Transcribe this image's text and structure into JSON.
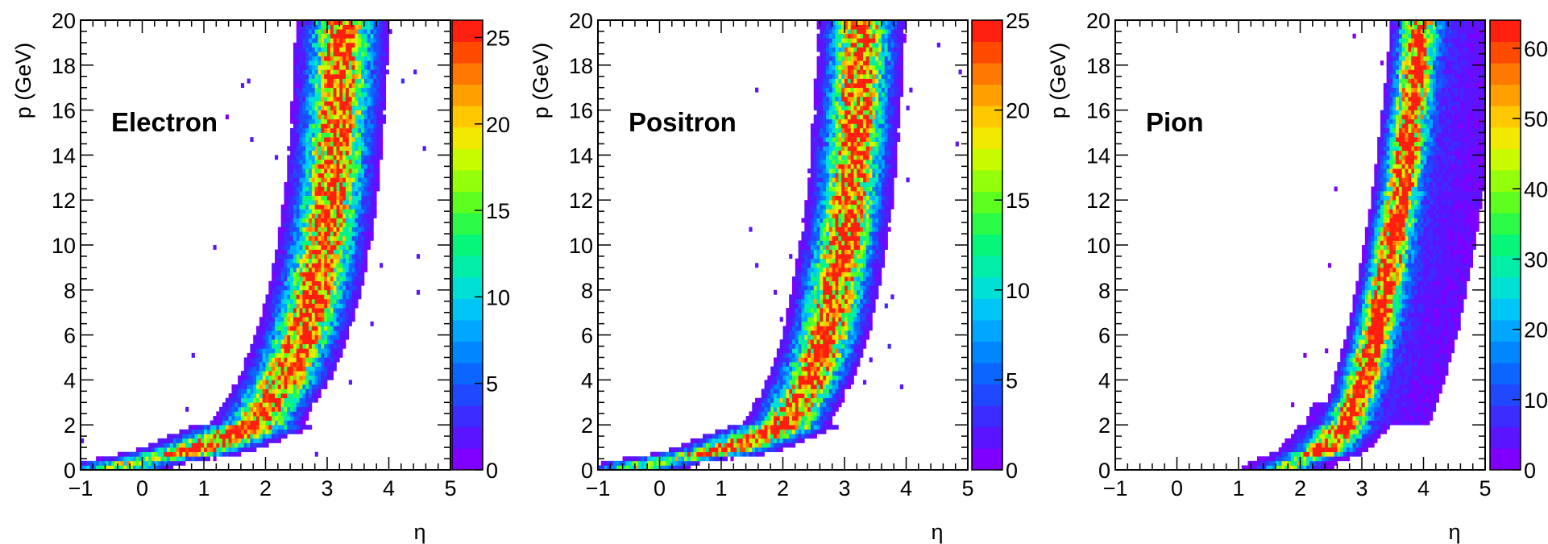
{
  "colors": {
    "background": "#ffffff",
    "frame": "#000000",
    "palette": [
      "#7f00ff",
      "#5a14ff",
      "#3c2cff",
      "#2048ff",
      "#0b66ff",
      "#0086ff",
      "#00a6ff",
      "#00c6f5",
      "#00e0d4",
      "#00eea8",
      "#06f67a",
      "#2bfb46",
      "#5cff1d",
      "#93ff0a",
      "#c8fb00",
      "#f2e900",
      "#ffc800",
      "#ffa000",
      "#ff7800",
      "#ff4a00",
      "#ff1f10"
    ]
  },
  "chart_data": [
    {
      "type": "heatmap",
      "label": "Electron",
      "xlabel": "η",
      "ylabel": "p (GeV)",
      "xlim": [
        -1,
        5
      ],
      "ylim": [
        0,
        20
      ],
      "x_ticks": [
        "−1",
        "0",
        "1",
        "2",
        "3",
        "4",
        "5"
      ],
      "y_ticks": [
        "0",
        "2",
        "4",
        "6",
        "8",
        "10",
        "12",
        "14",
        "16",
        "18",
        "20"
      ],
      "colorbar": {
        "range": [
          0,
          26
        ],
        "tick_labels": [
          "0",
          "5",
          "10",
          "15",
          "20",
          "25"
        ]
      },
      "band": {
        "center_eta_at_p": [
          [
            0.2,
            -0.4
          ],
          [
            0.8,
            0.8
          ],
          [
            2,
            1.85
          ],
          [
            4,
            2.3
          ],
          [
            6,
            2.6
          ],
          [
            8,
            2.8
          ],
          [
            10,
            2.95
          ],
          [
            12,
            3.05
          ],
          [
            14,
            3.12
          ],
          [
            16,
            3.18
          ],
          [
            18,
            3.22
          ],
          [
            20,
            3.25
          ]
        ],
        "eta_width": 0.3,
        "peak_counts": 26
      }
    },
    {
      "type": "heatmap",
      "label": "Positron",
      "xlabel": "η",
      "ylabel": "p (GeV)",
      "xlim": [
        -1,
        5
      ],
      "ylim": [
        0,
        20
      ],
      "x_ticks": [
        "−1",
        "0",
        "1",
        "2",
        "3",
        "4",
        "5"
      ],
      "y_ticks": [
        "0",
        "2",
        "4",
        "6",
        "8",
        "10",
        "12",
        "14",
        "16",
        "18",
        "20"
      ],
      "colorbar": {
        "range": [
          0,
          25
        ],
        "tick_labels": [
          "0",
          "5",
          "10",
          "15",
          "20",
          "25"
        ]
      },
      "band": {
        "center_eta_at_p": [
          [
            0.2,
            -0.4
          ],
          [
            0.8,
            1.0
          ],
          [
            2,
            2.05
          ],
          [
            4,
            2.45
          ],
          [
            6,
            2.7
          ],
          [
            8,
            2.85
          ],
          [
            10,
            2.98
          ],
          [
            12,
            3.08
          ],
          [
            14,
            3.15
          ],
          [
            16,
            3.2
          ],
          [
            18,
            3.25
          ],
          [
            20,
            3.28
          ]
        ],
        "eta_width": 0.28,
        "peak_counts": 25
      }
    },
    {
      "type": "heatmap",
      "label": "Pion",
      "xlabel": "η",
      "ylabel": "p (GeV)",
      "xlim": [
        -1,
        5
      ],
      "ylim": [
        0,
        20
      ],
      "x_ticks": [
        "−1",
        "0",
        "1",
        "2",
        "3",
        "4",
        "5"
      ],
      "y_ticks": [
        "0",
        "2",
        "4",
        "6",
        "8",
        "10",
        "12",
        "14",
        "16",
        "18",
        "20"
      ],
      "colorbar": {
        "range": [
          0,
          64
        ],
        "tick_labels": [
          "0",
          "10",
          "20",
          "30",
          "40",
          "50",
          "60"
        ]
      },
      "band": {
        "center_eta_at_p": [
          [
            0.2,
            1.8
          ],
          [
            0.8,
            2.35
          ],
          [
            2,
            2.75
          ],
          [
            4,
            3.0
          ],
          [
            6,
            3.2
          ],
          [
            8,
            3.35
          ],
          [
            10,
            3.48
          ],
          [
            12,
            3.6
          ],
          [
            14,
            3.7
          ],
          [
            16,
            3.78
          ],
          [
            18,
            3.86
          ],
          [
            20,
            3.93
          ]
        ],
        "eta_width": 0.18,
        "peak_counts": 64
      }
    }
  ]
}
